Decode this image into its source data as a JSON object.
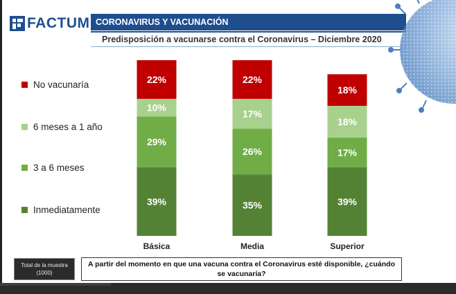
{
  "brand": {
    "name": "FACTUM",
    "color": "#1f4e8f"
  },
  "header": {
    "title": "CORONAVIRUS Y VACUNACIÓN",
    "subtitle": "Predisposición a vacunarse contra el Coronavirus – Diciembre 2020"
  },
  "footer": {
    "sample_line1": "Total de la muestra",
    "sample_line2": "(1000)",
    "question": "A partir del momento en que una vacuna contra el Coronavirus esté disponible, ¿cuándo se vacunaría?"
  },
  "chart_data": {
    "type": "bar",
    "stacked": true,
    "title": "Predisposición a vacunarse contra el Coronavirus – Diciembre 2020",
    "categories": [
      "Básica",
      "Media",
      "Superior"
    ],
    "series": [
      {
        "name": "Inmediatamente",
        "color": "#548235",
        "values": [
          39,
          35,
          39
        ],
        "labels": [
          "39%",
          "35%",
          "39%"
        ]
      },
      {
        "name": "3 a 6 meses",
        "color": "#70ad47",
        "values": [
          29,
          26,
          17
        ],
        "labels": [
          "29%",
          "26%",
          "17%"
        ]
      },
      {
        "name": "6 meses a 1 año",
        "color": "#a9d18e",
        "values": [
          10,
          17,
          18
        ],
        "labels": [
          "10%",
          "17%",
          "18%"
        ]
      },
      {
        "name": "No vacunaría",
        "color": "#c00000",
        "values": [
          22,
          22,
          18
        ],
        "labels": [
          "22%",
          "22%",
          "18%"
        ]
      }
    ],
    "legend_order": [
      "No vacunaría",
      "6 meses a 1 año",
      "3 a 6 meses",
      "Inmediatamente"
    ],
    "ylim": [
      0,
      100
    ],
    "xlabel": "",
    "ylabel": ""
  }
}
